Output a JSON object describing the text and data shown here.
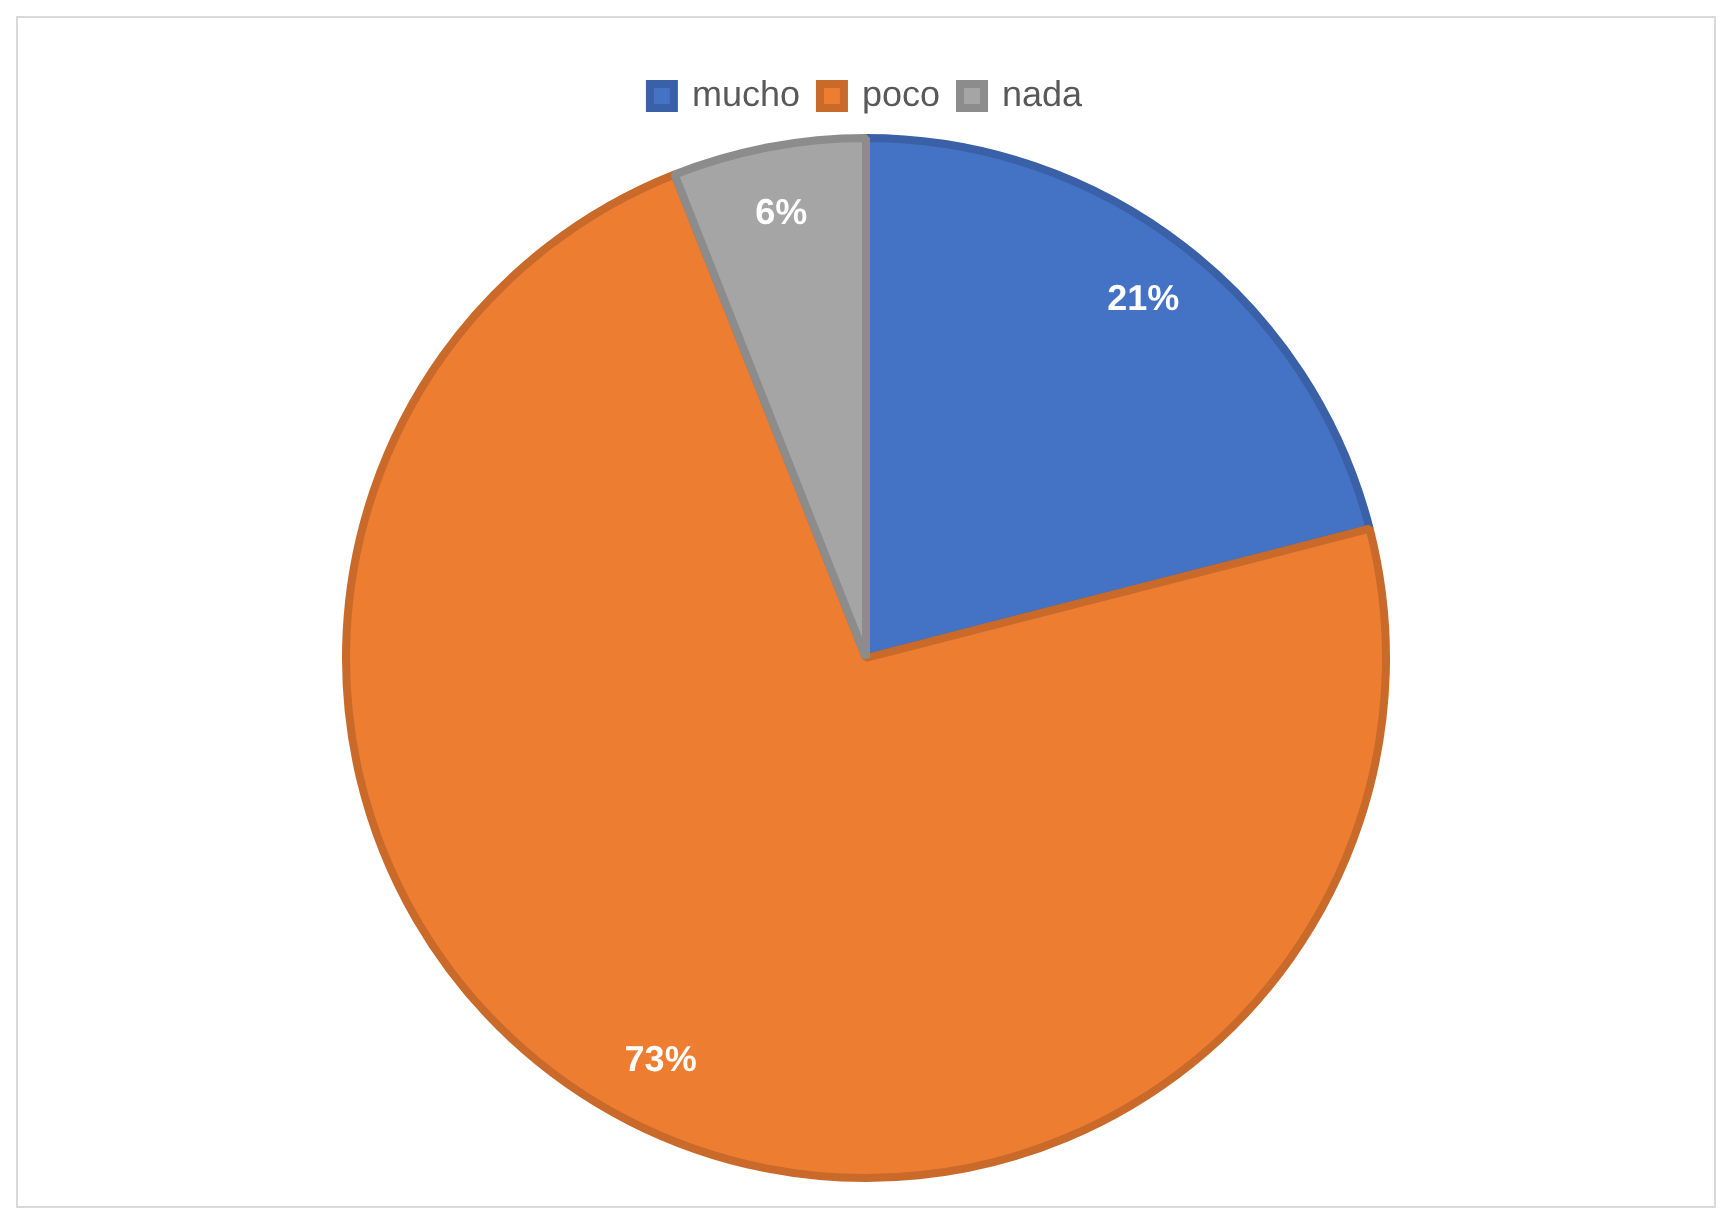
{
  "chart_data": {
    "type": "pie",
    "categories": [
      "mucho",
      "poco",
      "nada"
    ],
    "values": [
      21,
      73,
      6
    ],
    "colors": [
      "#4472c4",
      "#ed7d31",
      "#a5a5a5"
    ],
    "value_labels": [
      "21%",
      "73%",
      "6%"
    ],
    "legend": "top"
  }
}
